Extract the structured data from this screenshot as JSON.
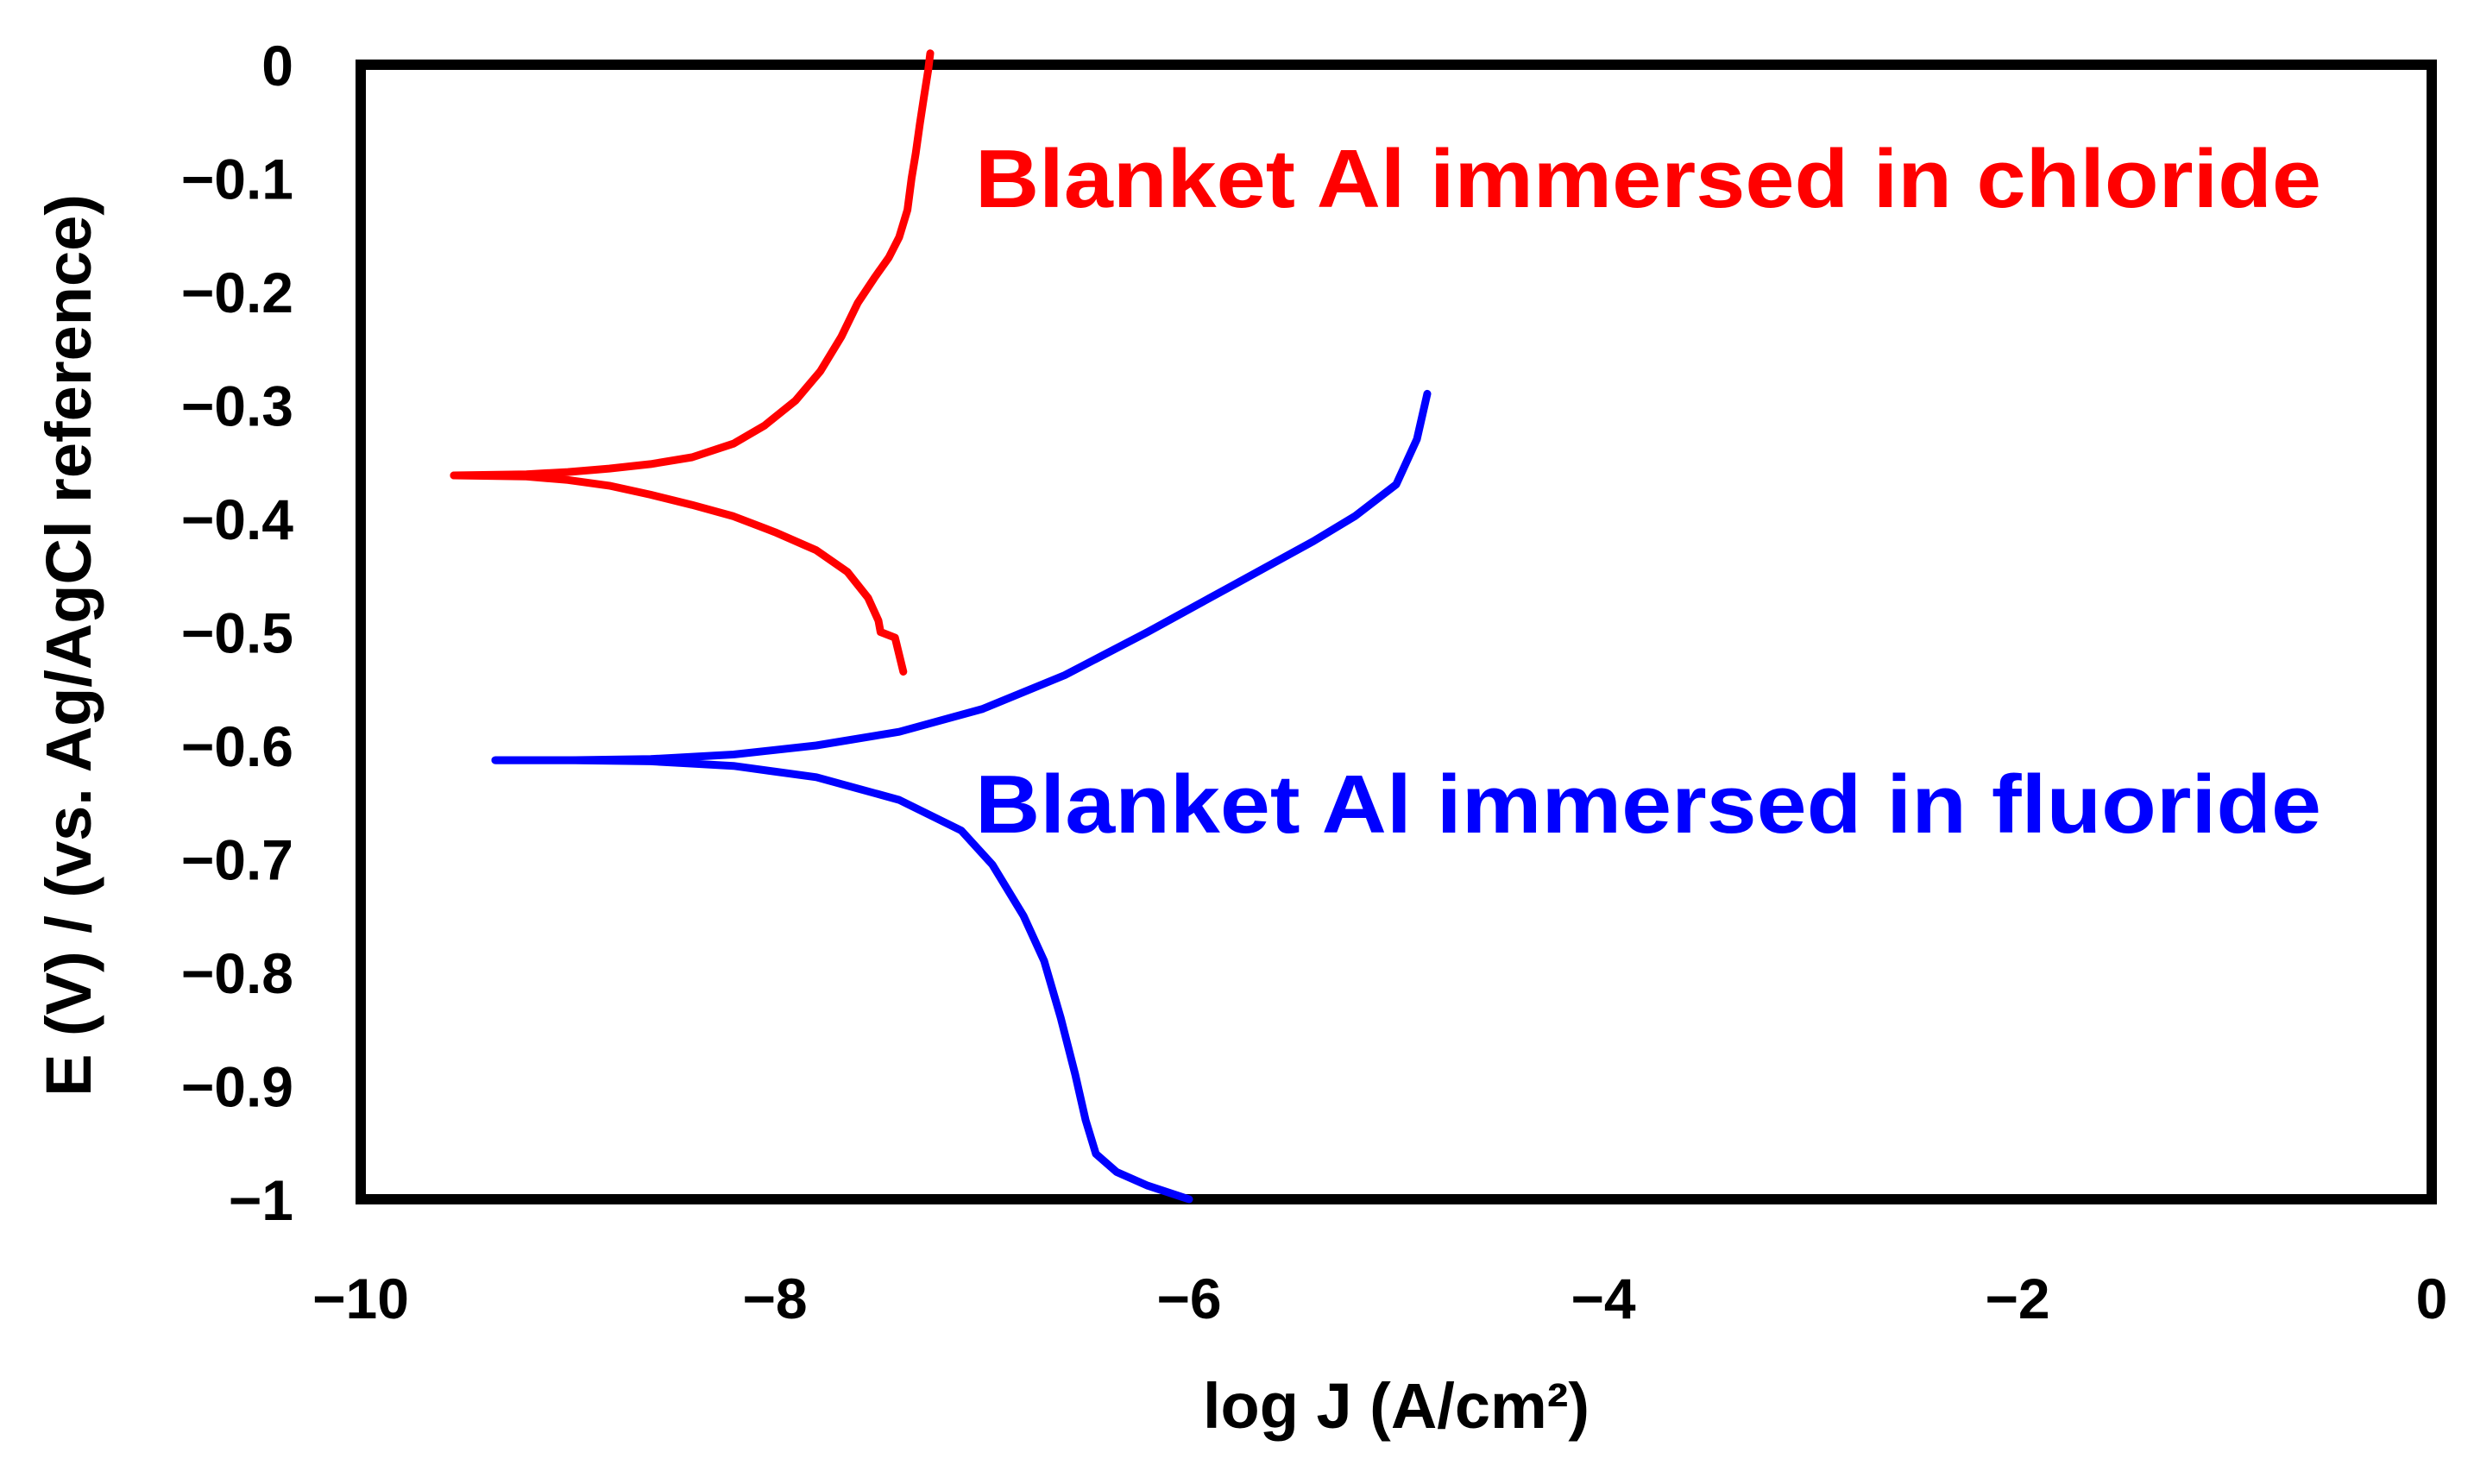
{
  "chart_data": {
    "type": "line",
    "title": "",
    "xlabel": "log J (A/cm²)",
    "ylabel": "E (V) / (vs. Ag/AgCl reference)",
    "xlim": [
      -10,
      0
    ],
    "ylim": [
      -1,
      0
    ],
    "x_ticks": [
      "−10",
      "−8",
      "−6",
      "−4",
      "−2",
      "0"
    ],
    "x_tick_values": [
      -10,
      -8,
      -6,
      -4,
      -2,
      0
    ],
    "y_ticks": [
      "0",
      "−0.1",
      "−0.2",
      "−0.3",
      "−0.4",
      "−0.5",
      "−0.6",
      "−0.7",
      "−0.8",
      "−0.9",
      "−1"
    ],
    "y_tick_values": [
      0,
      -0.1,
      -0.2,
      -0.3,
      -0.4,
      -0.5,
      -0.6,
      -0.7,
      -0.8,
      -0.9,
      -1
    ],
    "grid": false,
    "legend": "none",
    "series": [
      {
        "name": "Blanket Al immersed in chloride",
        "color": "#ff0000",
        "label_position": "top-right",
        "anodic": [
          [
            -9.55,
            -0.362
          ],
          [
            -9.2,
            -0.361
          ],
          [
            -9.0,
            -0.359
          ],
          [
            -8.8,
            -0.356
          ],
          [
            -8.6,
            -0.352
          ],
          [
            -8.4,
            -0.346
          ],
          [
            -8.2,
            -0.334
          ],
          [
            -8.05,
            -0.318
          ],
          [
            -7.9,
            -0.296
          ],
          [
            -7.78,
            -0.27
          ],
          [
            -7.68,
            -0.24
          ],
          [
            -7.6,
            -0.21
          ],
          [
            -7.52,
            -0.188
          ],
          [
            -7.45,
            -0.17
          ],
          [
            -7.4,
            -0.152
          ],
          [
            -7.36,
            -0.128
          ],
          [
            -7.34,
            -0.1
          ],
          [
            -7.32,
            -0.078
          ],
          [
            -7.3,
            -0.052
          ],
          [
            -7.28,
            -0.028
          ],
          [
            -7.26,
            -0.005
          ],
          [
            -7.25,
            0.01
          ]
        ],
        "cathodic": [
          [
            -9.55,
            -0.362
          ],
          [
            -9.2,
            -0.363
          ],
          [
            -9.0,
            -0.366
          ],
          [
            -8.8,
            -0.371
          ],
          [
            -8.6,
            -0.379
          ],
          [
            -8.4,
            -0.388
          ],
          [
            -8.2,
            -0.398
          ],
          [
            -8.0,
            -0.412
          ],
          [
            -7.8,
            -0.428
          ],
          [
            -7.65,
            -0.447
          ],
          [
            -7.55,
            -0.47
          ],
          [
            -7.5,
            -0.49
          ],
          [
            -7.49,
            -0.5
          ],
          [
            -7.42,
            -0.505
          ],
          [
            -7.4,
            -0.52
          ],
          [
            -7.38,
            -0.535
          ]
        ]
      },
      {
        "name": "Blanket Al immersed in fluoride",
        "color": "#0000ff",
        "label_position": "center-right",
        "anodic": [
          [
            -9.35,
            -0.613
          ],
          [
            -9.0,
            -0.613
          ],
          [
            -8.6,
            -0.612
          ],
          [
            -8.2,
            -0.608
          ],
          [
            -7.8,
            -0.6
          ],
          [
            -7.4,
            -0.588
          ],
          [
            -7.0,
            -0.568
          ],
          [
            -6.6,
            -0.538
          ],
          [
            -6.2,
            -0.5
          ],
          [
            -5.8,
            -0.46
          ],
          [
            -5.4,
            -0.42
          ],
          [
            -5.2,
            -0.398
          ],
          [
            -5.0,
            -0.37
          ],
          [
            -4.9,
            -0.33
          ],
          [
            -4.85,
            -0.29
          ]
        ],
        "cathodic": [
          [
            -9.35,
            -0.613
          ],
          [
            -9.0,
            -0.613
          ],
          [
            -8.6,
            -0.614
          ],
          [
            -8.2,
            -0.618
          ],
          [
            -7.8,
            -0.628
          ],
          [
            -7.4,
            -0.648
          ],
          [
            -7.1,
            -0.675
          ],
          [
            -6.95,
            -0.705
          ],
          [
            -6.8,
            -0.75
          ],
          [
            -6.7,
            -0.79
          ],
          [
            -6.62,
            -0.84
          ],
          [
            -6.55,
            -0.89
          ],
          [
            -6.5,
            -0.93
          ],
          [
            -6.45,
            -0.96
          ],
          [
            -6.35,
            -0.976
          ],
          [
            -6.2,
            -0.988
          ],
          [
            -6.0,
            -1.0
          ]
        ]
      }
    ]
  }
}
